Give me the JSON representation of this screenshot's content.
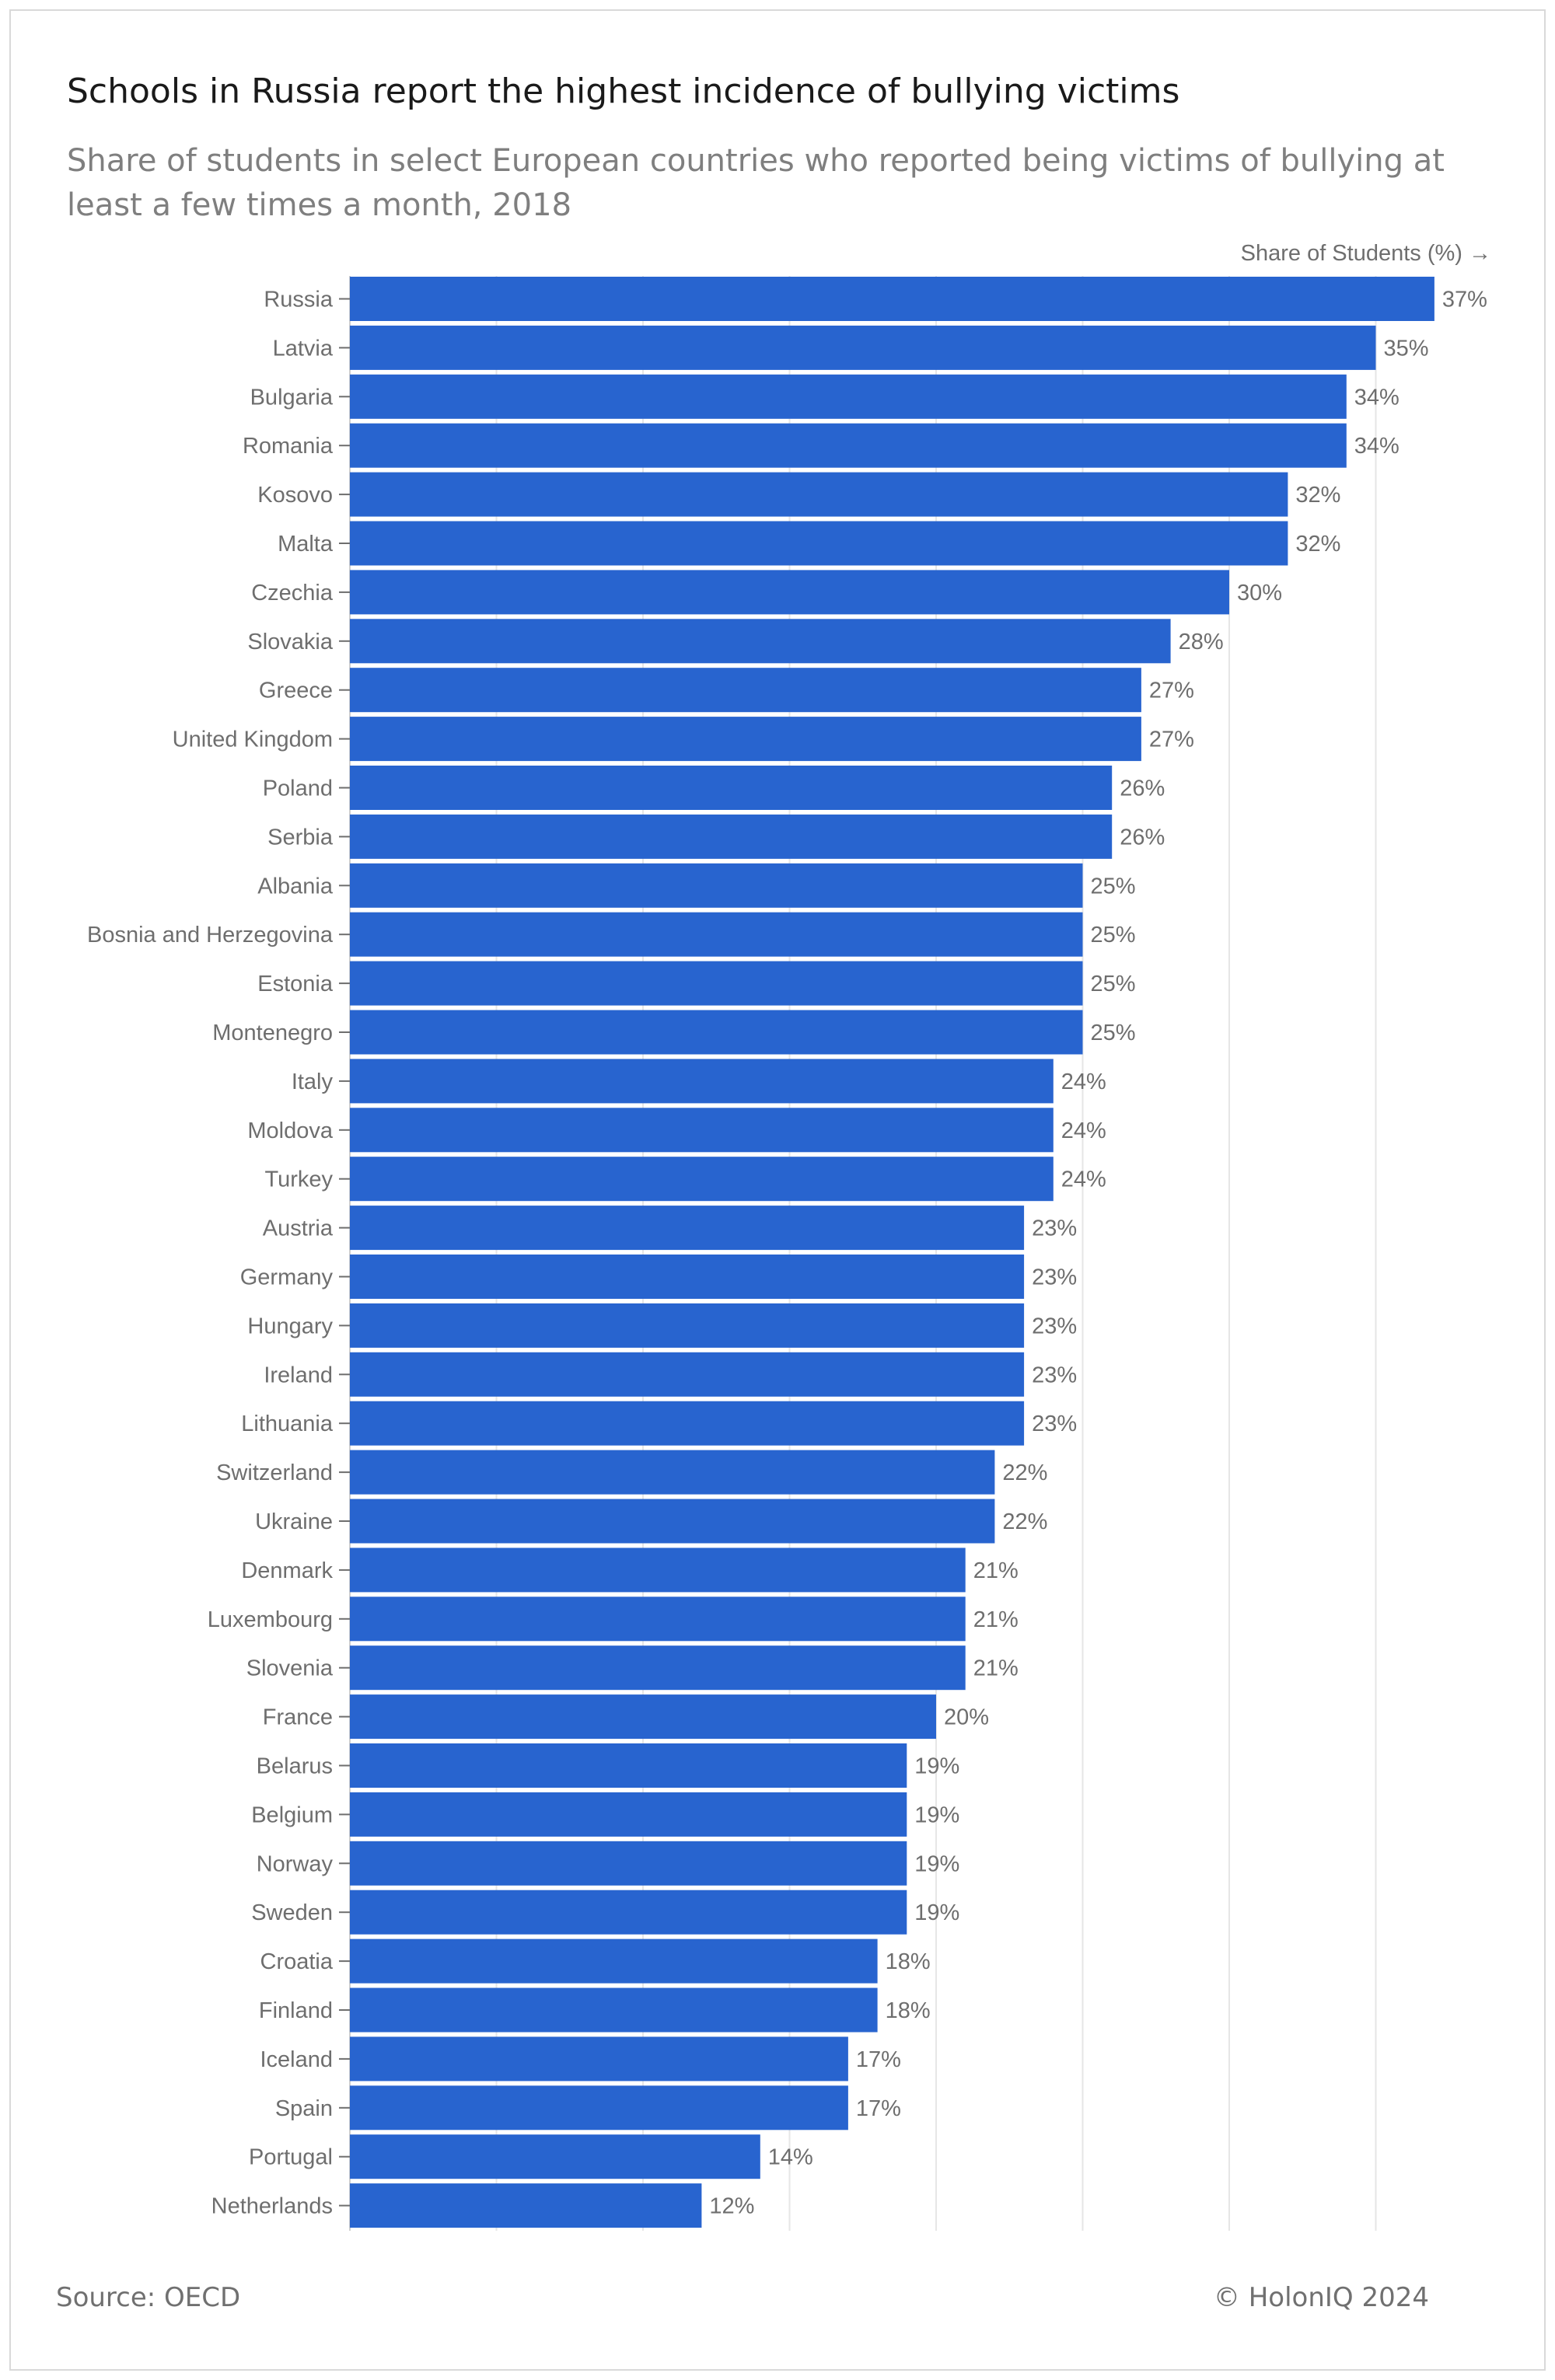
{
  "header": {
    "title": "Schools in Russia report the highest incidence of bullying victims",
    "subtitle": "Share of students in select European countries who reported being victims of bullying at least a few times a month, 2018"
  },
  "footer": {
    "source": "Source: OECD",
    "copyright": "© HolonIQ 2024"
  },
  "colors": {
    "bar": "#2864cf",
    "grid": "#e6e6e6",
    "label": "#6e6e6e"
  },
  "chart_data": {
    "type": "bar",
    "orientation": "horizontal",
    "xlabel": "Share of Students (%) →",
    "ylabel": "",
    "xlim": [
      0,
      38
    ],
    "grid": true,
    "value_suffix": "%",
    "categories": [
      "Russia",
      "Latvia",
      "Bulgaria",
      "Romania",
      "Kosovo",
      "Malta",
      "Czechia",
      "Slovakia",
      "Greece",
      "United Kingdom",
      "Poland",
      "Serbia",
      "Albania",
      "Bosnia and Herzegovina",
      "Estonia",
      "Montenegro",
      "Italy",
      "Moldova",
      "Turkey",
      "Austria",
      "Germany",
      "Hungary",
      "Ireland",
      "Lithuania",
      "Switzerland",
      "Ukraine",
      "Denmark",
      "Luxembourg",
      "Slovenia",
      "France",
      "Belarus",
      "Belgium",
      "Norway",
      "Sweden",
      "Croatia",
      "Finland",
      "Iceland",
      "Spain",
      "Portugal",
      "Netherlands"
    ],
    "values": [
      37,
      35,
      34,
      34,
      32,
      32,
      30,
      28,
      27,
      27,
      26,
      26,
      25,
      25,
      25,
      25,
      24,
      24,
      24,
      23,
      23,
      23,
      23,
      23,
      22,
      22,
      21,
      21,
      21,
      20,
      19,
      19,
      19,
      19,
      18,
      18,
      17,
      17,
      14,
      12
    ]
  }
}
